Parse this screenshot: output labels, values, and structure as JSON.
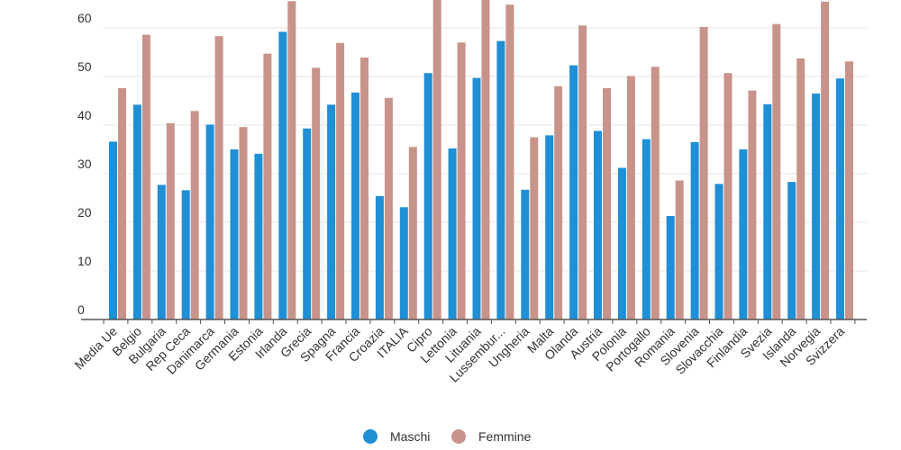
{
  "chart_data": {
    "type": "bar",
    "categories": [
      "Media Ue",
      "Belgio",
      "Bulgaria",
      "Rep Ceca",
      "Danimarca",
      "Germania",
      "Estonia",
      "Irlanda",
      "Grecia",
      "Spagna",
      "Francia",
      "Croazia",
      "ITALIA",
      "Cipro",
      "Lettonia",
      "Lituania",
      "Lussemburgo",
      "Ungheria",
      "Malta",
      "Olanda",
      "Austria",
      "Polonia",
      "Portogallo",
      "Romania",
      "Slovenia",
      "Slovacchia",
      "Finlandia",
      "Svezia",
      "Islanda",
      "Norvegia",
      "Svizzera"
    ],
    "category_display": [
      "Media Ue",
      "Belgio",
      "Bulgaria",
      "Rep Ceca",
      "Danimarca",
      "Germania",
      "Estonia",
      "Irlanda",
      "Grecia",
      "Spagna",
      "Francia",
      "Croazia",
      "ITALIA",
      "Cipro",
      "Lettonia",
      "Lituania",
      "Lussembur...",
      "Ungheria",
      "Malta",
      "Olanda",
      "Austria",
      "Polonia",
      "Portogallo",
      "Romania",
      "Slovenia",
      "Slovacchia",
      "Finlandia",
      "Svezia",
      "Islanda",
      "Norvegia",
      "Svizzera"
    ],
    "series": [
      {
        "name": "Maschi",
        "color": "#1f8fd6",
        "values": [
          36.6,
          44.2,
          27.7,
          26.6,
          40.1,
          35.0,
          34.1,
          59.2,
          39.3,
          44.2,
          46.7,
          25.4,
          23.1,
          50.7,
          35.2,
          49.7,
          57.3,
          26.7,
          37.9,
          52.3,
          38.8,
          31.2,
          37.1,
          21.3,
          36.5,
          27.9,
          35.0,
          44.3,
          28.3,
          46.5,
          49.6
        ]
      },
      {
        "name": "Femmine",
        "color": "#c8938a",
        "values": [
          47.6,
          58.6,
          40.4,
          42.9,
          58.3,
          39.6,
          54.7,
          65.5,
          51.8,
          56.9,
          53.9,
          45.6,
          35.5,
          66.0,
          57.0,
          65.9,
          64.8,
          37.5,
          48.0,
          60.5,
          47.6,
          50.1,
          52.0,
          28.6,
          60.2,
          50.7,
          47.1,
          60.8,
          53.7,
          65.4,
          53.1
        ]
      }
    ],
    "yticks": [
      0,
      10,
      20,
      30,
      40,
      50,
      60
    ],
    "ylim": [
      0,
      66
    ],
    "grid": true,
    "legend_position": "bottom-center",
    "title": "",
    "xlabel": "",
    "ylabel": ""
  }
}
